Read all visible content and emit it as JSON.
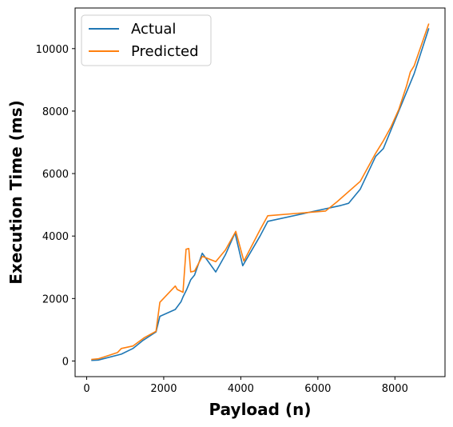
{
  "chart_data": {
    "type": "line",
    "xlabel": "Payload (n)",
    "ylabel": "Execution Time (ms)",
    "xlim": [
      -300,
      9300
    ],
    "ylim": [
      -500,
      11300
    ],
    "xticks": [
      0,
      2000,
      4000,
      6000,
      8000
    ],
    "yticks": [
      0,
      2000,
      4000,
      6000,
      8000,
      10000
    ],
    "grid": false,
    "legend_position": "top-left",
    "series": [
      {
        "name": "Actual",
        "color": "#1f77b4",
        "x": [
          120,
          300,
          900,
          1200,
          1450,
          1800,
          1900,
          2300,
          2450,
          2500,
          2600,
          2700,
          2800,
          3000,
          3350,
          3600,
          3850,
          4050,
          4500,
          4700,
          6600,
          6800,
          7100,
          7500,
          7700,
          7900,
          8100,
          8300,
          8500,
          8880
        ],
        "y": [
          20,
          30,
          220,
          400,
          650,
          930,
          1430,
          1650,
          1900,
          2050,
          2300,
          2600,
          2750,
          3450,
          2850,
          3400,
          4100,
          3050,
          4000,
          4470,
          4980,
          5050,
          5500,
          6550,
          6800,
          7400,
          8000,
          8600,
          9200,
          10650
        ]
      },
      {
        "name": "Predicted",
        "color": "#ff7f0e",
        "x": [
          120,
          300,
          800,
          900,
          1200,
          1500,
          1800,
          1900,
          2300,
          2350,
          2500,
          2580,
          2650,
          2700,
          2800,
          3000,
          3350,
          3600,
          3870,
          4080,
          4500,
          4700,
          6200,
          6500,
          7100,
          7500,
          7700,
          7900,
          8100,
          8300,
          8400,
          8500,
          8880
        ],
        "y": [
          50,
          70,
          270,
          400,
          480,
          750,
          950,
          1880,
          2400,
          2290,
          2200,
          3580,
          3600,
          2850,
          2880,
          3350,
          3180,
          3550,
          4150,
          3200,
          4200,
          4650,
          4800,
          5100,
          5750,
          6650,
          7050,
          7500,
          8050,
          8800,
          9250,
          9450,
          10800
        ]
      }
    ]
  }
}
